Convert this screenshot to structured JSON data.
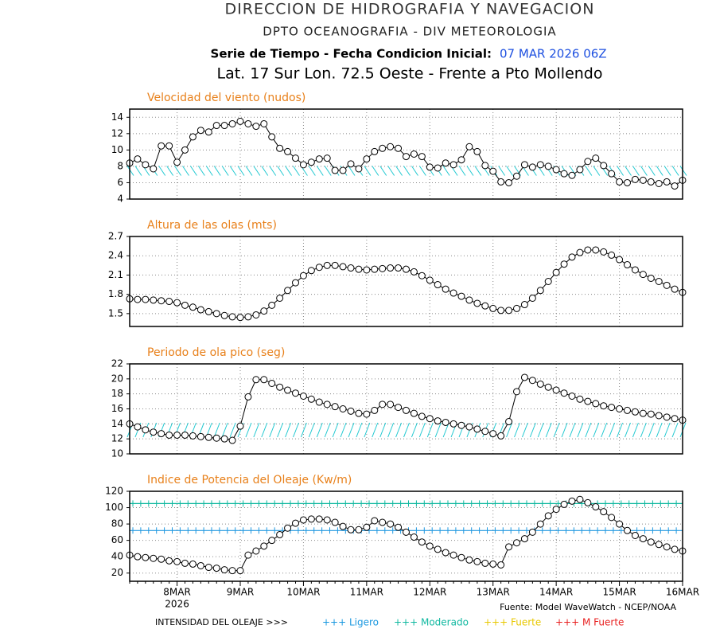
{
  "header": {
    "title": "DIRECCION DE HIDROGRAFIA Y NAVEGACION",
    "subtitle": "DPTO OCEANOGRAFIA - DIV METEOROLOGIA",
    "series_label": "Serie de Tiempo - Fecha Condicion Inicial:",
    "init_date": "07 MAR 2026 06Z",
    "location": "Lat. 17 Sur  Lon. 72.5 Oeste - Frente a Pto Mollendo"
  },
  "chart_data": [
    {
      "type": "line",
      "title": "Velocidad del viento (nudos)",
      "color": "#000000",
      "grid": true,
      "direction_arrows_color": "#20c8d0",
      "ylim": [
        4,
        15
      ],
      "yticks": [
        4,
        6,
        8,
        10,
        12,
        14
      ],
      "values": [
        8.4,
        8.9,
        8.2,
        7.7,
        10.5,
        10.5,
        8.5,
        10,
        11.6,
        12.4,
        12.2,
        13,
        13,
        13.2,
        13.5,
        13.2,
        12.9,
        13.2,
        11.6,
        10.2,
        9.8,
        9,
        8.2,
        8.5,
        8.9,
        9,
        7.5,
        7.5,
        8.3,
        7.7,
        8.9,
        9.8,
        10.2,
        10.4,
        10.2,
        9.2,
        9.5,
        9.2,
        7.9,
        7.8,
        8.4,
        8.2,
        8.8,
        10.4,
        9.8,
        8.1,
        7.4,
        6.1,
        6,
        6.8,
        8.2,
        7.9,
        8.2,
        8,
        7.6,
        7.1,
        6.9,
        7.6,
        8.6,
        9,
        8.1,
        7.1,
        6.1,
        6,
        6.4,
        6.3,
        6.1,
        5.9,
        6.1,
        5.6,
        6.3
      ]
    },
    {
      "type": "line",
      "title": "Altura de las olas (mts)",
      "color": "#000000",
      "grid": true,
      "ylim": [
        1.3,
        2.7
      ],
      "yticks": [
        1.5,
        1.8,
        2.1,
        2.4,
        2.7
      ],
      "values": [
        1.73,
        1.72,
        1.72,
        1.71,
        1.7,
        1.69,
        1.67,
        1.63,
        1.6,
        1.56,
        1.53,
        1.5,
        1.47,
        1.45,
        1.44,
        1.45,
        1.48,
        1.54,
        1.63,
        1.74,
        1.86,
        1.98,
        2.09,
        2.17,
        2.22,
        2.25,
        2.25,
        2.23,
        2.21,
        2.19,
        2.18,
        2.19,
        2.2,
        2.21,
        2.21,
        2.19,
        2.15,
        2.09,
        2.02,
        1.95,
        1.88,
        1.82,
        1.77,
        1.71,
        1.66,
        1.62,
        1.58,
        1.55,
        1.55,
        1.58,
        1.64,
        1.74,
        1.86,
        2,
        2.14,
        2.27,
        2.38,
        2.45,
        2.49,
        2.49,
        2.46,
        2.41,
        2.34,
        2.26,
        2.18,
        2.11,
        2.05,
        2,
        1.94,
        1.88,
        1.83
      ]
    },
    {
      "type": "line",
      "title": "Periodo de ola pico (seg)",
      "color": "#000000",
      "grid": true,
      "direction_arrows_color": "#20c8d0",
      "ylim": [
        10,
        22
      ],
      "yticks": [
        10,
        12,
        14,
        16,
        18,
        20,
        22
      ],
      "values": [
        14,
        13.6,
        13.2,
        12.9,
        12.7,
        12.5,
        12.5,
        12.5,
        12.4,
        12.3,
        12.2,
        12.1,
        12,
        11.8,
        13.7,
        17.6,
        19.9,
        19.9,
        19.4,
        18.9,
        18.5,
        18.1,
        17.7,
        17.3,
        16.9,
        16.6,
        16.3,
        16,
        15.7,
        15.4,
        15.3,
        15.8,
        16.6,
        16.6,
        16.2,
        15.8,
        15.4,
        15,
        14.7,
        14.4,
        14.2,
        14,
        13.8,
        13.6,
        13.3,
        13,
        12.7,
        12.4,
        14.3,
        18.3,
        20.2,
        19.8,
        19.3,
        18.9,
        18.5,
        18.1,
        17.7,
        17.3,
        17,
        16.7,
        16.4,
        16.2,
        16,
        15.8,
        15.6,
        15.4,
        15.3,
        15.1,
        14.9,
        14.7,
        14.5
      ]
    },
    {
      "type": "line",
      "title": "Indice de Potencia del Oleaje (Kw/m)",
      "color": "#000000",
      "grid": true,
      "ylim": [
        10,
        120
      ],
      "yticks": [
        20,
        40,
        60,
        80,
        100,
        120
      ],
      "reference_lines": [
        {
          "value": 105,
          "color": "#10b8a0"
        },
        {
          "value": 72,
          "color": "#2098e0"
        }
      ],
      "categories": [
        null,
        null,
        null,
        null,
        null,
        null,
        "8MAR",
        null,
        null,
        null,
        null,
        null,
        null,
        null,
        "9MAR",
        null,
        null,
        null,
        null,
        null,
        null,
        null,
        "10MAR",
        null,
        null,
        null,
        null,
        null,
        null,
        null,
        "11MAR",
        null,
        null,
        null,
        null,
        null,
        null,
        null,
        "12MAR",
        null,
        null,
        null,
        null,
        null,
        null,
        null,
        "13MAR",
        null,
        null,
        null,
        null,
        null,
        null,
        null,
        "14MAR",
        null,
        null,
        null,
        null,
        null,
        null,
        null,
        "15MAR",
        null,
        null,
        null,
        null,
        null,
        null,
        null,
        "16MAR"
      ],
      "x_sublabel": "2026",
      "values": [
        42,
        40,
        39,
        38,
        37,
        35,
        34,
        32,
        31,
        29,
        27,
        26,
        24,
        23,
        23,
        42,
        47,
        53,
        60,
        67,
        75,
        81,
        85,
        86,
        86,
        85,
        82,
        77,
        73,
        73,
        76,
        84,
        82,
        80,
        76,
        70,
        64,
        58,
        53,
        49,
        45,
        42,
        39,
        36,
        34,
        32,
        31,
        30,
        52,
        57,
        62,
        70,
        80,
        90,
        98,
        104,
        108,
        110,
        106,
        101,
        95,
        88,
        80,
        72,
        66,
        62,
        58,
        55,
        52,
        49,
        47
      ]
    }
  ],
  "footer": {
    "source": "Fuente: Model WaveWatch - NCEP/NOAA",
    "legend_title": "INTENSIDAD DEL OLEAJE >>>",
    "legend": [
      {
        "label": "+++ Ligero",
        "color": "#1a98e0"
      },
      {
        "label": "+++ Moderado",
        "color": "#10b8a0"
      },
      {
        "label": "+++ Fuerte",
        "color": "#e8c800"
      },
      {
        "label": "+++ M Fuerte",
        "color": "#e82020"
      }
    ]
  }
}
